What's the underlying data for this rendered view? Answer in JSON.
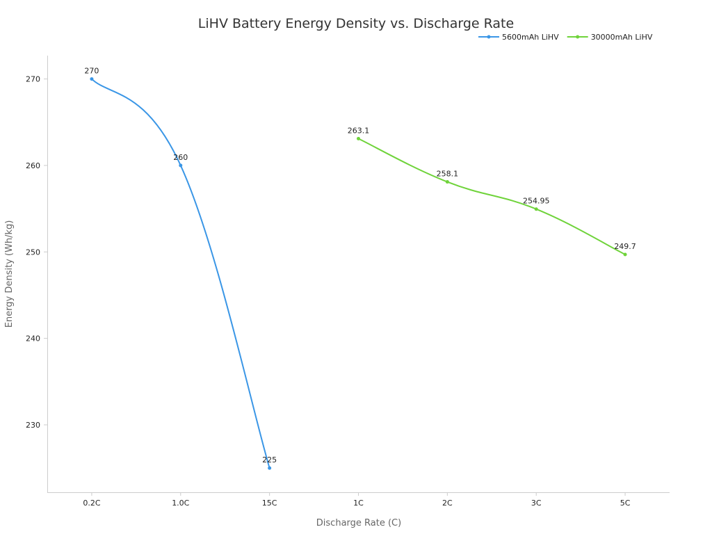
{
  "chart_data": {
    "type": "line",
    "title": "LiHV Battery Energy Density vs. Discharge Rate",
    "xlabel": "Discharge Rate (C)",
    "ylabel": "Energy Density (Wh/kg)",
    "categories": [
      "0.2C",
      "1.0C",
      "15C",
      "1C",
      "2C",
      "3C",
      "5C"
    ],
    "ylim": [
      222.2,
      272.7
    ],
    "yticks": [
      230,
      240,
      250,
      260,
      270
    ],
    "grid": false,
    "legend_position": "top-right",
    "series": [
      {
        "name": "5600mAh LiHV",
        "color": "#3a96e6",
        "points": [
          [
            "0.2C",
            270
          ],
          [
            "1.0C",
            260
          ],
          [
            "15C",
            225
          ]
        ],
        "labels": [
          "270",
          "260",
          "225"
        ]
      },
      {
        "name": "30000mAh LiHV",
        "color": "#6fd33a",
        "points": [
          [
            "1C",
            263.1
          ],
          [
            "2C",
            258.1
          ],
          [
            "3C",
            254.95
          ],
          [
            "5C",
            249.7
          ]
        ],
        "labels": [
          "263.1",
          "258.1",
          "254.95",
          "249.7"
        ]
      }
    ]
  }
}
